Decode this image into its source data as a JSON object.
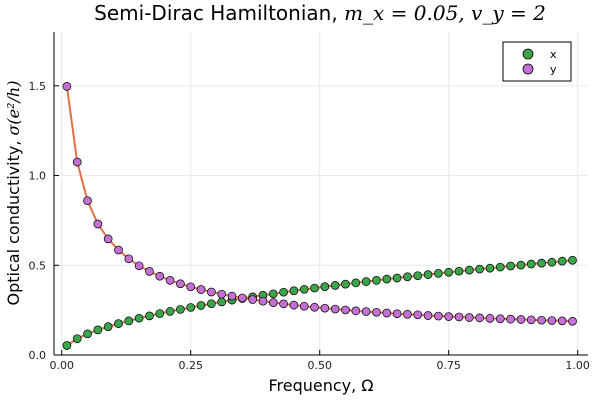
{
  "chart_data": {
    "type": "scatter",
    "title": "Semi-Dirac Hamiltonian, ",
    "title_math": "m_x = 0.05, v_y = 2",
    "xlabel": "Frequency, Ω",
    "ylabel": "Optical conductivity, ",
    "ylabel_math": "σ(e²/h)",
    "xlim": [
      -0.015,
      1.02
    ],
    "ylim": [
      0,
      1.8
    ],
    "xticks": [
      0.0,
      0.25,
      0.5,
      0.75,
      1.0
    ],
    "xtick_labels": [
      "0.00",
      "0.25",
      "0.50",
      "0.75",
      "1.00"
    ],
    "yticks": [
      0.0,
      0.5,
      1.0,
      1.5
    ],
    "ytick_labels": [
      "0.0",
      "0.5",
      "1.0",
      "1.5"
    ],
    "grid": true,
    "legend_position": "top-right",
    "line_color": "#e26f46",
    "series": [
      {
        "name": "x",
        "color": "#3da44d",
        "x": [
          0.01,
          0.03,
          0.05,
          0.07,
          0.09,
          0.11,
          0.13,
          0.15,
          0.17,
          0.19,
          0.21,
          0.23,
          0.25,
          0.27,
          0.29,
          0.31,
          0.33,
          0.35,
          0.37,
          0.39,
          0.41,
          0.43,
          0.45,
          0.47,
          0.49,
          0.51,
          0.53,
          0.55,
          0.57,
          0.59,
          0.61,
          0.63,
          0.65,
          0.67,
          0.69,
          0.71,
          0.73,
          0.75,
          0.77,
          0.79,
          0.81,
          0.83,
          0.85,
          0.87,
          0.89,
          0.91,
          0.93,
          0.95,
          0.97,
          0.99
        ],
        "y": [
          0.053,
          0.091,
          0.118,
          0.14,
          0.158,
          0.175,
          0.19,
          0.205,
          0.218,
          0.231,
          0.243,
          0.254,
          0.265,
          0.276,
          0.286,
          0.296,
          0.306,
          0.315,
          0.324,
          0.333,
          0.341,
          0.35,
          0.358,
          0.366,
          0.373,
          0.381,
          0.388,
          0.395,
          0.402,
          0.409,
          0.416,
          0.423,
          0.429,
          0.436,
          0.442,
          0.448,
          0.455,
          0.461,
          0.467,
          0.473,
          0.479,
          0.484,
          0.49,
          0.496,
          0.501,
          0.507,
          0.512,
          0.517,
          0.523,
          0.528
        ]
      },
      {
        "name": "y",
        "color": "#c271d2",
        "x": [
          0.01,
          0.03,
          0.05,
          0.07,
          0.09,
          0.11,
          0.13,
          0.15,
          0.17,
          0.19,
          0.21,
          0.23,
          0.25,
          0.27,
          0.29,
          0.31,
          0.33,
          0.35,
          0.37,
          0.39,
          0.41,
          0.43,
          0.45,
          0.47,
          0.49,
          0.51,
          0.53,
          0.55,
          0.57,
          0.59,
          0.61,
          0.63,
          0.65,
          0.67,
          0.69,
          0.71,
          0.73,
          0.75,
          0.77,
          0.79,
          0.81,
          0.83,
          0.85,
          0.87,
          0.89,
          0.91,
          0.93,
          0.95,
          0.97,
          0.99
        ],
        "y": [
          1.497,
          1.075,
          0.86,
          0.73,
          0.647,
          0.585,
          0.536,
          0.497,
          0.466,
          0.439,
          0.416,
          0.397,
          0.38,
          0.365,
          0.351,
          0.339,
          0.328,
          0.318,
          0.309,
          0.3,
          0.292,
          0.285,
          0.278,
          0.272,
          0.266,
          0.261,
          0.256,
          0.251,
          0.246,
          0.242,
          0.238,
          0.234,
          0.23,
          0.227,
          0.224,
          0.22,
          0.217,
          0.214,
          0.212,
          0.209,
          0.207,
          0.204,
          0.202,
          0.2,
          0.198,
          0.196,
          0.194,
          0.192,
          0.19,
          0.188
        ]
      }
    ]
  }
}
